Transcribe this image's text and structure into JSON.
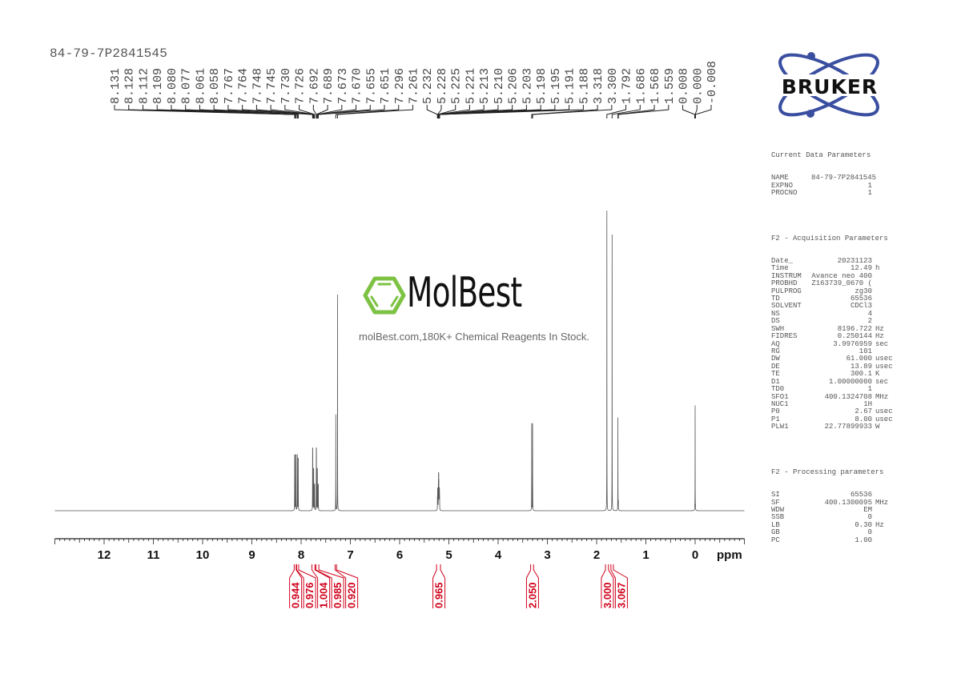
{
  "sample_name": "84-79-7P2841545",
  "watermark": {
    "brand": "MolBest",
    "tagline": "molBest.com,180K+ Chemical Reagents In Stock.",
    "color": "#7dc242"
  },
  "vendor_logo": {
    "text": "BRUKER",
    "color": "#3a4fa0"
  },
  "parameters": {
    "current": {
      "title": "Current Data Parameters",
      "rows": [
        {
          "name": "NAME",
          "value": "84-79-7P2841545",
          "unit": ""
        },
        {
          "name": "EXPNO",
          "value": "1",
          "unit": ""
        },
        {
          "name": "PROCNO",
          "value": "1",
          "unit": ""
        }
      ]
    },
    "acquisition": {
      "title": "F2 - Acquisition Parameters",
      "rows": [
        {
          "name": "Date_",
          "value": "20231123",
          "unit": ""
        },
        {
          "name": "Time",
          "value": "12.49",
          "unit": "h"
        },
        {
          "name": "INSTRUM",
          "value": "Avance neo 400",
          "unit": ""
        },
        {
          "name": "PROBHD",
          "value": "Z163739_0670 (",
          "unit": ""
        },
        {
          "name": "PULPROG",
          "value": "zg30",
          "unit": ""
        },
        {
          "name": "TD",
          "value": "65536",
          "unit": ""
        },
        {
          "name": "SOLVENT",
          "value": "CDCl3",
          "unit": ""
        },
        {
          "name": "NS",
          "value": "4",
          "unit": ""
        },
        {
          "name": "DS",
          "value": "2",
          "unit": ""
        },
        {
          "name": "SWH",
          "value": "8196.722",
          "unit": "Hz"
        },
        {
          "name": "FIDRES",
          "value": "0.250144",
          "unit": "Hz"
        },
        {
          "name": "AQ",
          "value": "3.9976959",
          "unit": "sec"
        },
        {
          "name": "RG",
          "value": "101",
          "unit": ""
        },
        {
          "name": "DW",
          "value": "61.000",
          "unit": "usec"
        },
        {
          "name": "DE",
          "value": "13.89",
          "unit": "usec"
        },
        {
          "name": "TE",
          "value": "300.1",
          "unit": "K"
        },
        {
          "name": "D1",
          "value": "1.00000000",
          "unit": "sec"
        },
        {
          "name": "TD0",
          "value": "1",
          "unit": ""
        },
        {
          "name": "SFO1",
          "value": "400.1324708",
          "unit": "MHz"
        },
        {
          "name": "NUC1",
          "value": "1H",
          "unit": ""
        },
        {
          "name": "P0",
          "value": "2.67",
          "unit": "usec"
        },
        {
          "name": "P1",
          "value": "8.00",
          "unit": "usec"
        },
        {
          "name": "PLW1",
          "value": "22.77899933",
          "unit": "W"
        }
      ]
    },
    "processing": {
      "title": "F2 - Processing parameters",
      "rows": [
        {
          "name": "SI",
          "value": "65536",
          "unit": ""
        },
        {
          "name": "SF",
          "value": "400.1300095",
          "unit": "MHz"
        },
        {
          "name": "WDW",
          "value": "EM",
          "unit": ""
        },
        {
          "name": "SSB",
          "value": "0",
          "unit": ""
        },
        {
          "name": "LB",
          "value": "0.30",
          "unit": "Hz"
        },
        {
          "name": "GB",
          "value": "0",
          "unit": ""
        },
        {
          "name": "PC",
          "value": "1.00",
          "unit": ""
        }
      ]
    }
  },
  "chart_data": {
    "type": "line",
    "xlabel": "ppm",
    "xlim": [
      13.0,
      -1.0
    ],
    "x_reversed": true,
    "x_ticks": [
      "12",
      "11",
      "10",
      "9",
      "8",
      "7",
      "6",
      "5",
      "4",
      "3",
      "2",
      "1",
      "0"
    ],
    "grid": false,
    "line_color": "#555555",
    "integral_color": "#d0021b",
    "peaks": [
      {
        "ppm": 8.131,
        "intensity": 16
      },
      {
        "ppm": 8.128,
        "intensity": 16
      },
      {
        "ppm": 8.112,
        "intensity": 16
      },
      {
        "ppm": 8.109,
        "intensity": 16
      },
      {
        "ppm": 8.08,
        "intensity": 16
      },
      {
        "ppm": 8.077,
        "intensity": 16
      },
      {
        "ppm": 8.061,
        "intensity": 15
      },
      {
        "ppm": 8.058,
        "intensity": 15
      },
      {
        "ppm": 7.767,
        "intensity": 18
      },
      {
        "ppm": 7.764,
        "intensity": 18
      },
      {
        "ppm": 7.748,
        "intensity": 12
      },
      {
        "ppm": 7.745,
        "intensity": 12
      },
      {
        "ppm": 7.73,
        "intensity": 8
      },
      {
        "ppm": 7.726,
        "intensity": 8
      },
      {
        "ppm": 7.692,
        "intensity": 18
      },
      {
        "ppm": 7.689,
        "intensity": 18
      },
      {
        "ppm": 7.673,
        "intensity": 12
      },
      {
        "ppm": 7.67,
        "intensity": 12
      },
      {
        "ppm": 7.655,
        "intensity": 8
      },
      {
        "ppm": 7.651,
        "intensity": 8
      },
      {
        "ppm": 7.296,
        "intensity": 32
      },
      {
        "ppm": 7.261,
        "intensity": 72
      },
      {
        "ppm": 5.232,
        "intensity": 4
      },
      {
        "ppm": 5.228,
        "intensity": 6
      },
      {
        "ppm": 5.225,
        "intensity": 6
      },
      {
        "ppm": 5.221,
        "intensity": 4
      },
      {
        "ppm": 5.213,
        "intensity": 8
      },
      {
        "ppm": 5.21,
        "intensity": 10
      },
      {
        "ppm": 5.206,
        "intensity": 10
      },
      {
        "ppm": 5.203,
        "intensity": 8
      },
      {
        "ppm": 5.198,
        "intensity": 4
      },
      {
        "ppm": 5.195,
        "intensity": 6
      },
      {
        "ppm": 5.191,
        "intensity": 6
      },
      {
        "ppm": 5.188,
        "intensity": 4
      },
      {
        "ppm": 3.318,
        "intensity": 29
      },
      {
        "ppm": 3.3,
        "intensity": 29
      },
      {
        "ppm": 1.792,
        "intensity": 100
      },
      {
        "ppm": 1.686,
        "intensity": 92
      },
      {
        "ppm": 1.568,
        "intensity": 31
      },
      {
        "ppm": 1.559,
        "intensity": 3
      },
      {
        "ppm": 0.008,
        "intensity": 1
      },
      {
        "ppm": 0.0,
        "intensity": 35
      },
      {
        "ppm": -0.008,
        "intensity": 1
      }
    ],
    "peak_labels": [
      "8.131",
      "8.128",
      "8.112",
      "8.109",
      "8.080",
      "8.077",
      "8.061",
      "8.058",
      "7.767",
      "7.764",
      "7.748",
      "7.745",
      "7.730",
      "7.726",
      "7.692",
      "7.689",
      "7.673",
      "7.670",
      "7.655",
      "7.651",
      "7.296",
      "7.261",
      "5.232",
      "5.228",
      "5.225",
      "5.221",
      "5.213",
      "5.210",
      "5.206",
      "5.203",
      "5.198",
      "5.195",
      "5.191",
      "5.188",
      "3.318",
      "3.300",
      "1.792",
      "1.686",
      "1.568",
      "1.559",
      "0.008",
      "0.000",
      "-0.008"
    ],
    "integrals": [
      {
        "from": 8.14,
        "to": 8.1,
        "value": "0.944"
      },
      {
        "from": 8.09,
        "to": 8.05,
        "value": "0.976"
      },
      {
        "from": 7.78,
        "to": 7.72,
        "value": "1.004"
      },
      {
        "from": 7.7,
        "to": 7.64,
        "value": "0.985"
      },
      {
        "from": 7.31,
        "to": 7.28,
        "value": "0.920"
      },
      {
        "from": 5.25,
        "to": 5.17,
        "value": "0.965"
      },
      {
        "from": 3.34,
        "to": 3.28,
        "value": "2.050"
      },
      {
        "from": 1.82,
        "to": 1.76,
        "value": "3.000"
      },
      {
        "from": 1.71,
        "to": 1.66,
        "value": "3.067"
      }
    ]
  }
}
